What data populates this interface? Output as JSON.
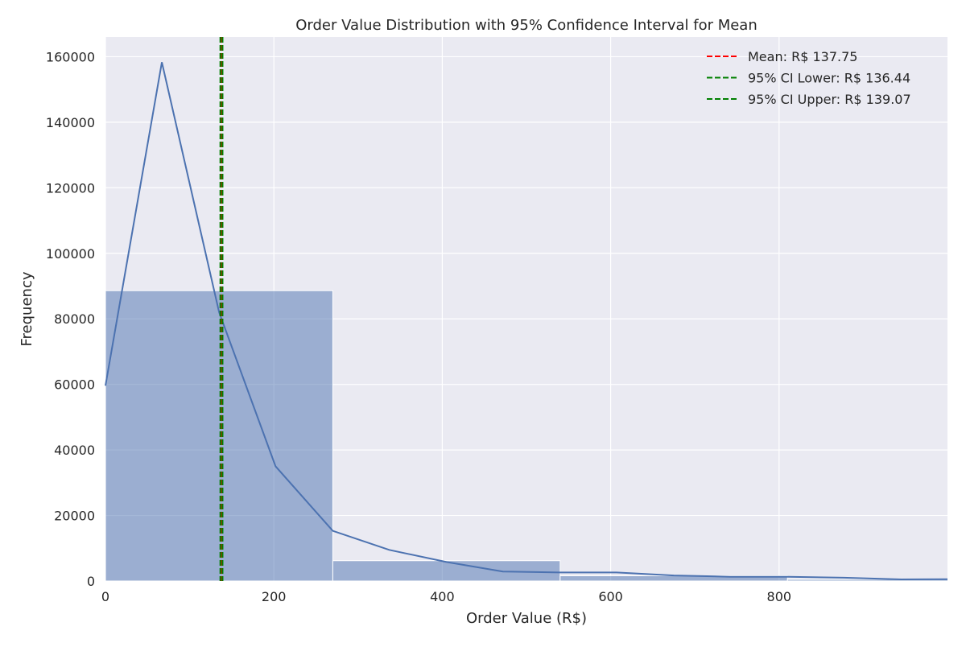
{
  "chart_data": {
    "type": "bar",
    "title": "Order Value Distribution with 95% Confidence Interval for Mean",
    "xlabel": "Order Value (R$)",
    "ylabel": "Frequency",
    "xlim": [
      0,
      1000
    ],
    "ylim": [
      0,
      166000
    ],
    "xticks": [
      0,
      200,
      400,
      600,
      800
    ],
    "yticks": [
      0,
      20000,
      40000,
      60000,
      80000,
      100000,
      120000,
      140000,
      160000
    ],
    "grid": true,
    "legend_placement": "top-right",
    "colors": {
      "background": "#eaeaf2",
      "bars": "#4c72b0",
      "kde": "#4c72b0",
      "mean": "#ff0000",
      "ci": "#008000"
    },
    "histogram": {
      "bin_edges": [
        0,
        270,
        540,
        810,
        1080
      ],
      "counts": [
        88600,
        6200,
        1600,
        500
      ]
    },
    "kde": {
      "x": [
        0,
        67,
        135,
        202,
        270,
        337,
        405,
        472,
        540,
        607,
        675,
        742,
        810,
        877,
        945,
        1000
      ],
      "y": [
        59600,
        158300,
        82000,
        35000,
        15300,
        9500,
        5800,
        2900,
        2600,
        2600,
        1700,
        1300,
        1300,
        1000,
        500,
        550
      ]
    },
    "vlines": [
      {
        "name": "Mean: R$ 137.75",
        "x": 137.75,
        "color": "#ff0000"
      },
      {
        "name": "95% CI Lower: R$ 136.44",
        "x": 136.44,
        "color": "#008000"
      },
      {
        "name": "95% CI Upper: R$ 139.07",
        "x": 139.07,
        "color": "#008000"
      }
    ]
  }
}
